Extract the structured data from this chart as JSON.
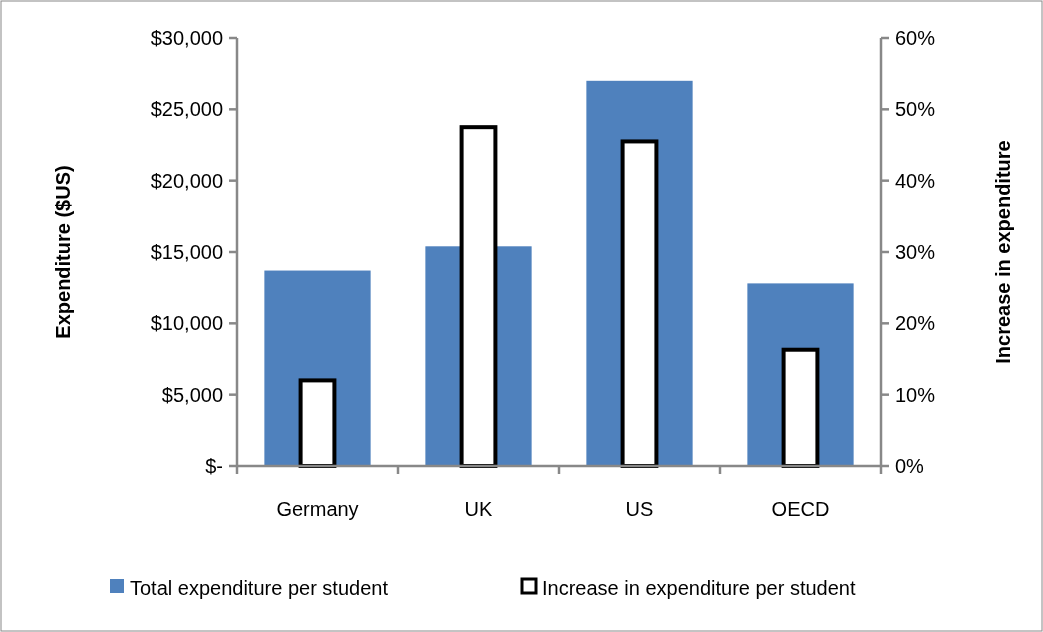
{
  "chart_data": {
    "type": "bar",
    "ylabel": "Expenditure ($US)",
    "y2label": "Increase in expenditure",
    "categories": [
      "Germany",
      "UK",
      "US",
      "OECD"
    ],
    "series": [
      {
        "name": "Total expenditure per student",
        "color": "#4f81bd",
        "values": [
          13700,
          15400,
          27000,
          12800
        ]
      },
      {
        "name": "Increase in expenditure per student",
        "color": "#ffffff",
        "axis": "y2",
        "values": [
          12,
          47.5,
          45.5,
          16.3
        ]
      }
    ],
    "ylim": [
      0,
      30000
    ],
    "yticks": [
      {
        "value": 0,
        "label": "$-"
      },
      {
        "value": 5000,
        "label": "$5,000"
      },
      {
        "value": 10000,
        "label": "$10,000"
      },
      {
        "value": 15000,
        "label": "$15,000"
      },
      {
        "value": 20000,
        "label": "$20,000"
      },
      {
        "value": 25000,
        "label": "$25,000"
      },
      {
        "value": 30000,
        "label": "$30,000"
      }
    ],
    "y2lim": [
      0,
      60
    ],
    "y2ticks": [
      {
        "value": 0,
        "label": "0%"
      },
      {
        "value": 10,
        "label": "10%"
      },
      {
        "value": 20,
        "label": "20%"
      },
      {
        "value": 30,
        "label": "30%"
      },
      {
        "value": 40,
        "label": "40%"
      },
      {
        "value": 50,
        "label": "50%"
      },
      {
        "value": 60,
        "label": "60%"
      }
    ],
    "grid": false,
    "legend": "bottom"
  }
}
